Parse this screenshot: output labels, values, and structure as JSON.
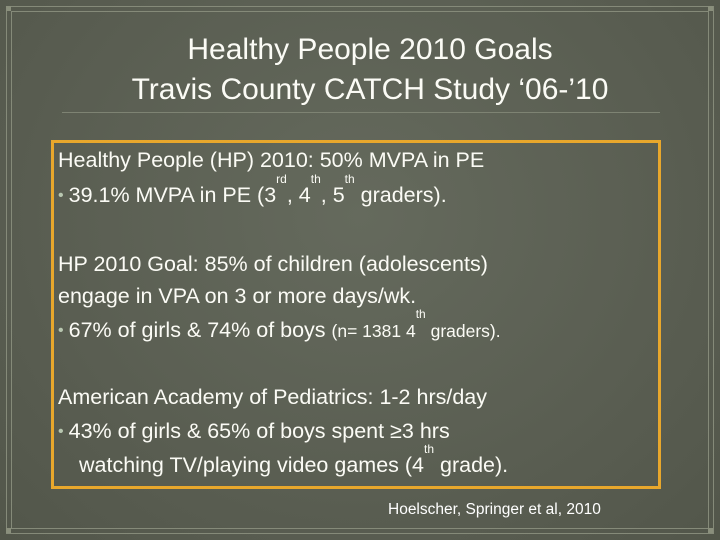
{
  "slide": {
    "title_line1": "Healthy People 2010 Goals",
    "title_line2": "Travis County CATCH Study ‘06-’10",
    "block1": {
      "heading": "Healthy People (HP) 2010: 50% MVPA in PE",
      "bullet_prefix": "39.1% MVPA in PE (3",
      "sup1": "rd",
      "sep1": ", 4",
      "sup2": "th",
      "sep2": ", 5",
      "sup3": "th",
      "bullet_suffix": " graders)."
    },
    "block2": {
      "line1": "HP 2010 Goal: 85% of children (adolescents)",
      "line2": "engage in VPA on 3 or more days/wk.",
      "bullet_main": "67% of girls & 74% of boys ",
      "bullet_small_prefix": "(n= 1381 4",
      "bullet_small_sup": "th",
      "bullet_small_suffix": " graders)."
    },
    "block3": {
      "heading": "American Academy of Pediatrics: 1-2 hrs/day",
      "bullet_line1": "43% of girls & 65% of boys spent ≥3 hrs",
      "bullet_line2_prefix": "watching TV/playing video games (4",
      "bullet_line2_sup": "th",
      "bullet_line2_suffix": " grade)."
    },
    "citation": "Hoelscher, Springer et al, 2010",
    "bullet_glyph": "•",
    "colors": {
      "background": "#5b5e52",
      "text": "#fbfbf5",
      "box_border": "#e8a72c",
      "bullet": "#b8c7b0"
    }
  }
}
